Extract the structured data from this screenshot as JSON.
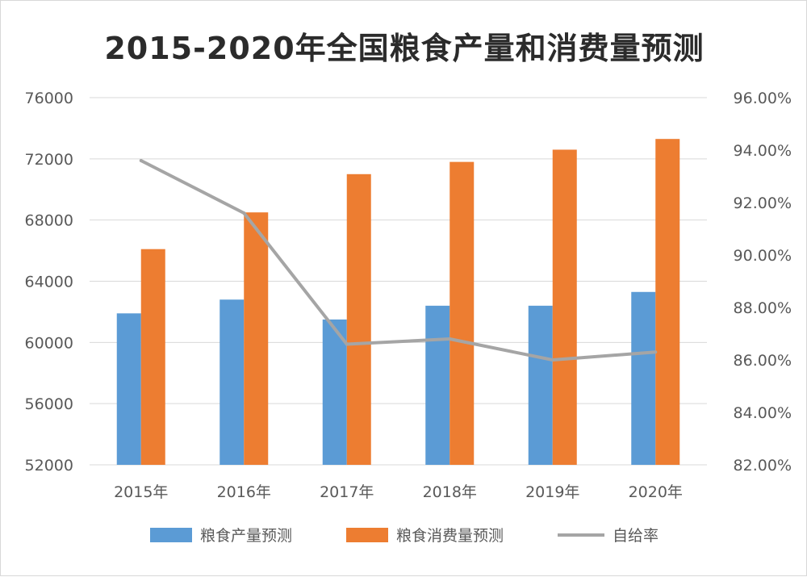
{
  "chart_data": {
    "type": "bar",
    "title": "2015-2020年全国粮食产量和消费量预测",
    "categories": [
      "2015年",
      "2016年",
      "2017年",
      "2018年",
      "2019年",
      "2020年"
    ],
    "series": [
      {
        "name": "粮食产量预测",
        "type": "bar",
        "axis": "left",
        "color": "#5b9bd5",
        "values": [
          61900,
          62800,
          61500,
          62400,
          62400,
          63300
        ]
      },
      {
        "name": "粮食消费量预测",
        "type": "bar",
        "axis": "left",
        "color": "#ed7d31",
        "values": [
          66100,
          68500,
          71000,
          71800,
          72600,
          73300
        ]
      },
      {
        "name": "自给率",
        "type": "line",
        "axis": "right",
        "color": "#a5a5a5",
        "values": [
          93.6,
          91.6,
          86.6,
          86.8,
          86.0,
          86.3
        ]
      }
    ],
    "ylim_left": [
      52000,
      76000
    ],
    "yticks_left": [
      "76000",
      "72000",
      "68000",
      "64000",
      "60000",
      "56000",
      "52000"
    ],
    "ylim_right": [
      82,
      96
    ],
    "yticks_right": [
      "96.00%",
      "94.00%",
      "92.00%",
      "90.00%",
      "88.00%",
      "86.00%",
      "84.00%",
      "82.00%"
    ],
    "grid": true,
    "legend_position": "bottom"
  }
}
